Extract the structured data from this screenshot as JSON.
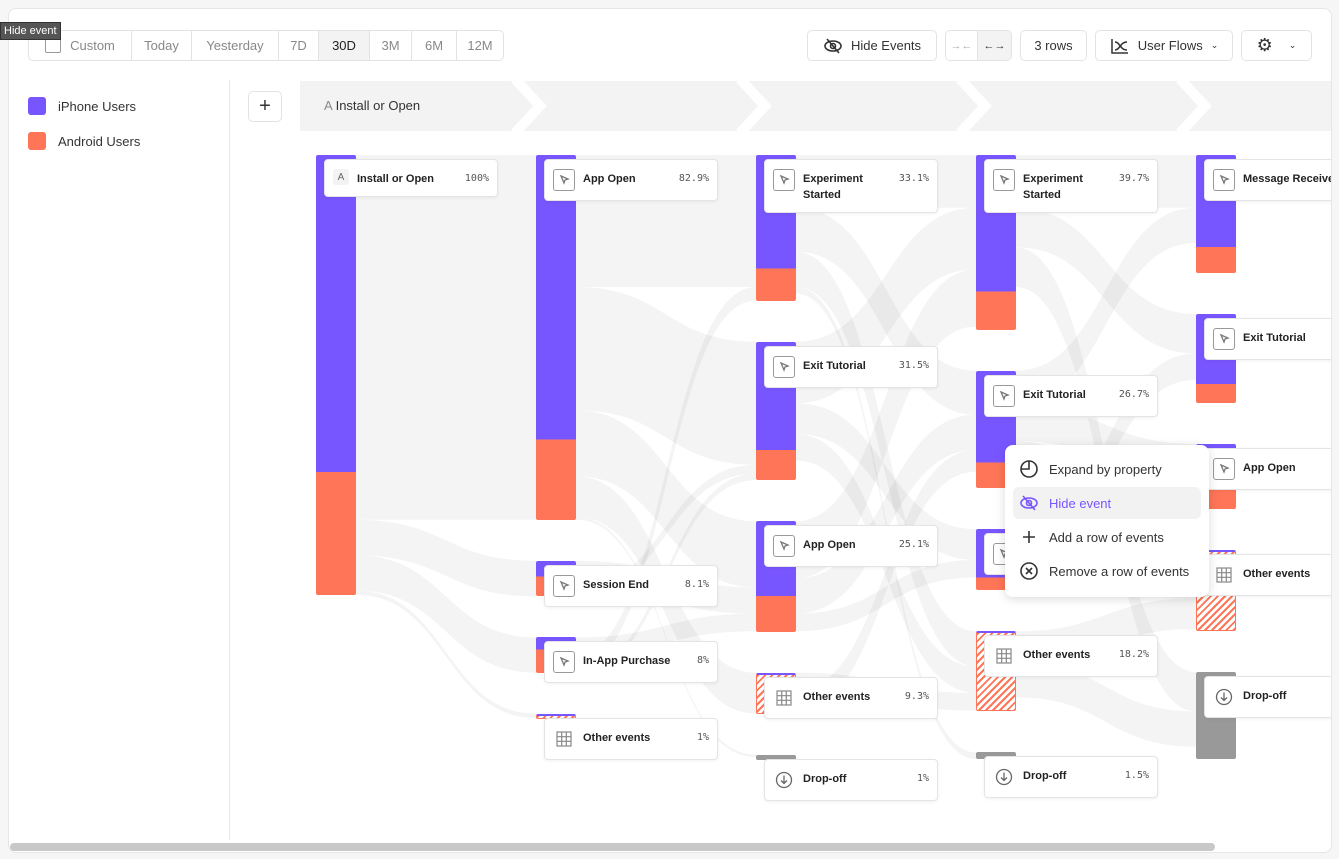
{
  "tooltip": "Hide event",
  "toolbar": {
    "date_ranges": [
      {
        "label": "Custom",
        "icon": "calendar-icon"
      },
      {
        "label": "Today"
      },
      {
        "label": "Yesterday"
      },
      {
        "label": "7D"
      },
      {
        "label": "30D",
        "selected": true
      },
      {
        "label": "3M"
      },
      {
        "label": "6M"
      },
      {
        "label": "12M"
      }
    ],
    "hide_events": "Hide Events",
    "rows": "3 rows",
    "view": "User Flows"
  },
  "legend": [
    {
      "label": "iPhone Users",
      "color": "#7856ff"
    },
    {
      "label": "Android Users",
      "color": "#ff7557"
    }
  ],
  "steps": {
    "first": "Install or Open",
    "first_letter": "A"
  },
  "colors": {
    "iphone": "#7856ff",
    "android": "#ff7557",
    "dropoff": "#999999"
  },
  "columns": [
    [
      {
        "name": "Install or Open",
        "pct": 100,
        "label": "100%",
        "iphone": 0.72,
        "icon": "A"
      }
    ],
    [
      {
        "name": "App Open",
        "pct": 82.9,
        "label": "82.9%",
        "iphone": 0.78
      },
      {
        "name": "Session End",
        "pct": 8.1,
        "label": "8.1%",
        "iphone": 0.44
      },
      {
        "name": "In-App Purchase",
        "pct": 8,
        "label": "8%",
        "iphone": 0.36
      },
      {
        "name": "Other events",
        "pct": 1,
        "label": "1%",
        "type": "other"
      }
    ],
    [
      {
        "name": "Experiment Started",
        "pct": 33.1,
        "label": "33.1%",
        "iphone": 0.78
      },
      {
        "name": "Exit Tutorial",
        "pct": 31.5,
        "label": "31.5%",
        "iphone": 0.78
      },
      {
        "name": "App Open",
        "pct": 25.1,
        "label": "25.1%",
        "iphone": 0.68
      },
      {
        "name": "Other events",
        "pct": 9.3,
        "label": "9.3%",
        "type": "other"
      },
      {
        "name": "Drop-off",
        "pct": 1,
        "label": "1%",
        "type": "dropoff"
      }
    ],
    [
      {
        "name": "Experiment Started",
        "pct": 39.7,
        "label": "39.7%",
        "iphone": 0.78
      },
      {
        "name": "Exit Tutorial",
        "pct": 26.7,
        "label": "26.7%",
        "iphone": 0.78
      },
      {
        "name": "",
        "pct": 13.9,
        "label": "",
        "iphone": 0.79
      },
      {
        "name": "Other events",
        "pct": 18.2,
        "label": "18.2%",
        "type": "other"
      },
      {
        "name": "Drop-off",
        "pct": 1.5,
        "label": "1.5%",
        "type": "dropoff"
      }
    ],
    [
      {
        "name": "Message Received",
        "pct": 26.8,
        "label": "",
        "iphone": 0.78
      },
      {
        "name": "Exit Tutorial",
        "pct": 20.2,
        "label": "",
        "iphone": 0.79
      },
      {
        "name": "App Open",
        "pct": 14.8,
        "label": "",
        "iphone": 0.66
      },
      {
        "name": "Other events",
        "pct": 18.4,
        "label": "",
        "type": "other"
      },
      {
        "name": "Drop-off",
        "pct": 19.8,
        "label": "",
        "type": "dropoff"
      }
    ]
  ],
  "context_menu": [
    {
      "label": "Expand by property",
      "icon": "expand-property-icon"
    },
    {
      "label": "Hide event",
      "icon": "eye-slash-icon",
      "highlighted": true
    },
    {
      "label": "Add a row of events",
      "icon": "plus-icon"
    },
    {
      "label": "Remove a row of events",
      "icon": "x-circle-icon"
    }
  ]
}
